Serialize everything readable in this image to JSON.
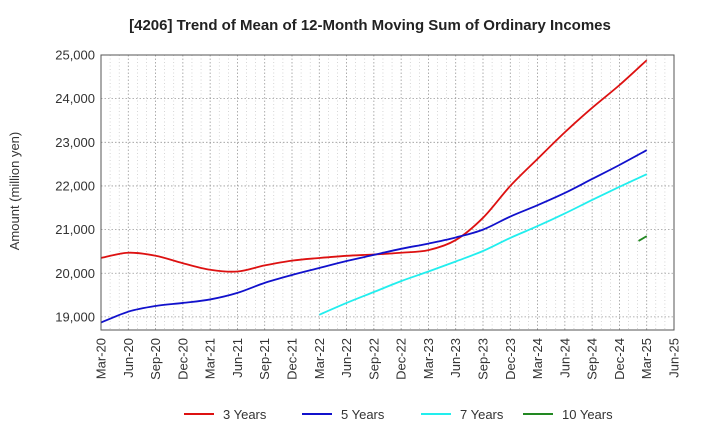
{
  "chart_data": {
    "type": "line",
    "title": "[4206]  Trend of Mean of 12-Month Moving Sum of Ordinary Incomes",
    "xlabel": "",
    "ylabel": "Amount (million yen)",
    "ylim": [
      18700,
      25000
    ],
    "yticks": [
      19000,
      20000,
      21000,
      22000,
      23000,
      24000,
      25000
    ],
    "ytick_labels": [
      "19,000",
      "20,000",
      "21,000",
      "22,000",
      "23,000",
      "24,000",
      "25,000"
    ],
    "categories": [
      "Mar-20",
      "Jun-20",
      "Sep-20",
      "Dec-20",
      "Mar-21",
      "Jun-21",
      "Sep-21",
      "Dec-21",
      "Mar-22",
      "Jun-22",
      "Sep-22",
      "Dec-22",
      "Mar-23",
      "Jun-23",
      "Sep-23",
      "Dec-23",
      "Mar-24",
      "Jun-24",
      "Sep-24",
      "Dec-24",
      "Mar-25",
      "Jun-25"
    ],
    "grid": true,
    "legend_position": "bottom",
    "series": [
      {
        "name": "3 Years",
        "color": "#dd1111",
        "values": [
          20350,
          20470,
          20400,
          20230,
          20080,
          20040,
          20180,
          20290,
          20350,
          20400,
          20430,
          20470,
          20530,
          20760,
          21270,
          22000,
          22620,
          23230,
          23790,
          24310,
          24880,
          null
        ]
      },
      {
        "name": "5 Years",
        "color": "#1111cc",
        "values": [
          18870,
          19120,
          19250,
          19320,
          19400,
          19550,
          19780,
          19960,
          20120,
          20280,
          20420,
          20560,
          20680,
          20820,
          21000,
          21300,
          21560,
          21840,
          22160,
          22480,
          22820,
          null
        ]
      },
      {
        "name": "7 Years",
        "color": "#22eeee",
        "values": [
          null,
          null,
          null,
          null,
          null,
          null,
          null,
          null,
          19050,
          19320,
          19570,
          19820,
          20040,
          20270,
          20510,
          20810,
          21080,
          21370,
          21680,
          21980,
          22270,
          null
        ]
      },
      {
        "name": "10 Years",
        "color": "#228822",
        "values": [
          null,
          null,
          null,
          null,
          null,
          null,
          null,
          null,
          null,
          null,
          null,
          null,
          null,
          null,
          null,
          null,
          null,
          null,
          null,
          null,
          20850,
          null
        ],
        "extra_points": [
          [
            19.7,
            20740
          ]
        ]
      }
    ]
  }
}
